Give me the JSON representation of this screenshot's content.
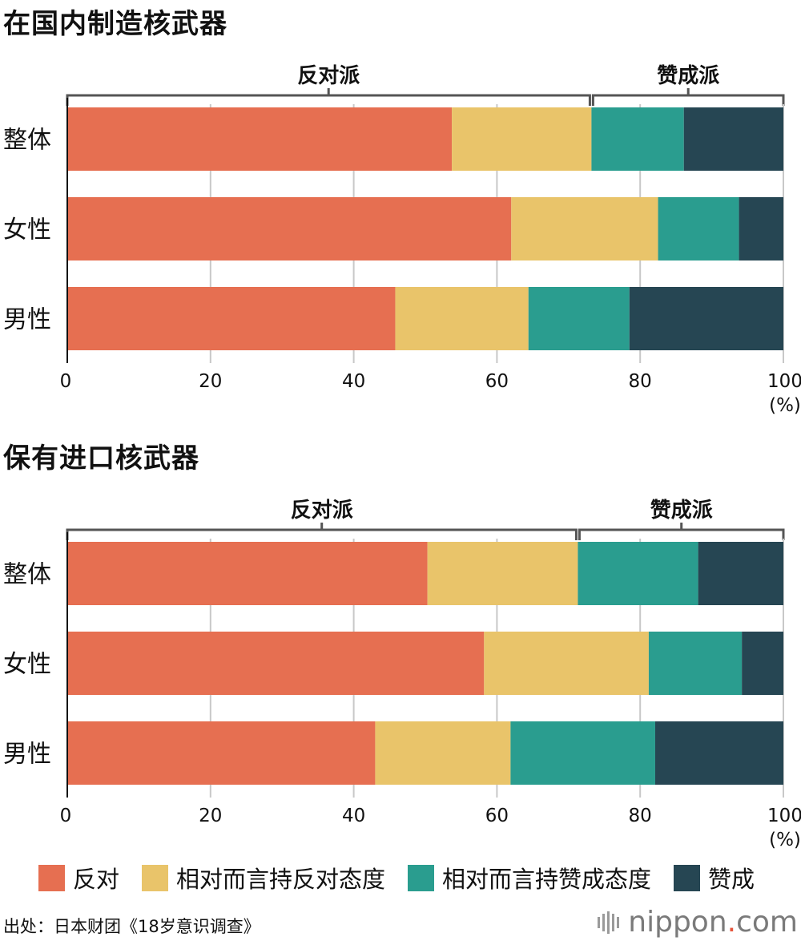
{
  "colors": {
    "opposed": "#e66f51",
    "rather_opposed": "#e9c46a",
    "rather_in_favor": "#2a9d8f",
    "in_favor": "#264653",
    "grid": "#c8c8c8",
    "axis": "#111111",
    "bracket": "#555555"
  },
  "legend": [
    {
      "label": "反对",
      "color": "#e66f51"
    },
    {
      "label": "相对而言持反对态度",
      "color": "#e9c46a"
    },
    {
      "label": "相对而言持赞成态度",
      "color": "#2a9d8f"
    },
    {
      "label": "赞成",
      "color": "#264653"
    }
  ],
  "source": "出处：日本财团《18岁意识调查》",
  "logo": {
    "text": "nippon",
    "dot": ".",
    "suffix": "com"
  },
  "chart_data": [
    {
      "type": "bar",
      "orientation": "horizontal",
      "stacked": true,
      "title": "在国内制造核武器",
      "categories": [
        "整体",
        "女性",
        "男性"
      ],
      "series": [
        {
          "name": "反对",
          "values": [
            53.7,
            62.0,
            45.8
          ]
        },
        {
          "name": "相对而言持反对态度",
          "values": [
            19.5,
            20.5,
            18.6
          ]
        },
        {
          "name": "相对而言持赞成态度",
          "values": [
            12.9,
            11.3,
            14.1
          ]
        },
        {
          "name": "赞成",
          "values": [
            13.9,
            6.2,
            21.5
          ]
        }
      ],
      "groups": [
        {
          "label": "反对派",
          "from": 0,
          "to": 73.2
        },
        {
          "label": "赞成派",
          "from": 73.2,
          "to": 100
        }
      ],
      "xlim": [
        0,
        100
      ],
      "xticks": [
        "0",
        "20",
        "40",
        "60",
        "80",
        "100"
      ],
      "xunit": "(%)",
      "grid": true
    },
    {
      "type": "bar",
      "orientation": "horizontal",
      "stacked": true,
      "title": "保有进口核武器",
      "categories": [
        "整体",
        "女性",
        "男性"
      ],
      "series": [
        {
          "name": "反对",
          "values": [
            50.3,
            58.2,
            43.0
          ]
        },
        {
          "name": "相对而言持反对态度",
          "values": [
            21.0,
            23.0,
            18.9
          ]
        },
        {
          "name": "相对而言持赞成态度",
          "values": [
            16.8,
            13.0,
            20.2
          ]
        },
        {
          "name": "赞成",
          "values": [
            11.9,
            5.8,
            17.9
          ]
        }
      ],
      "groups": [
        {
          "label": "反对派",
          "from": 0,
          "to": 71.3
        },
        {
          "label": "赞成派",
          "from": 71.3,
          "to": 100
        }
      ],
      "xlim": [
        0,
        100
      ],
      "xticks": [
        "0",
        "20",
        "40",
        "60",
        "80",
        "100"
      ],
      "xunit": "(%)",
      "grid": true
    }
  ]
}
